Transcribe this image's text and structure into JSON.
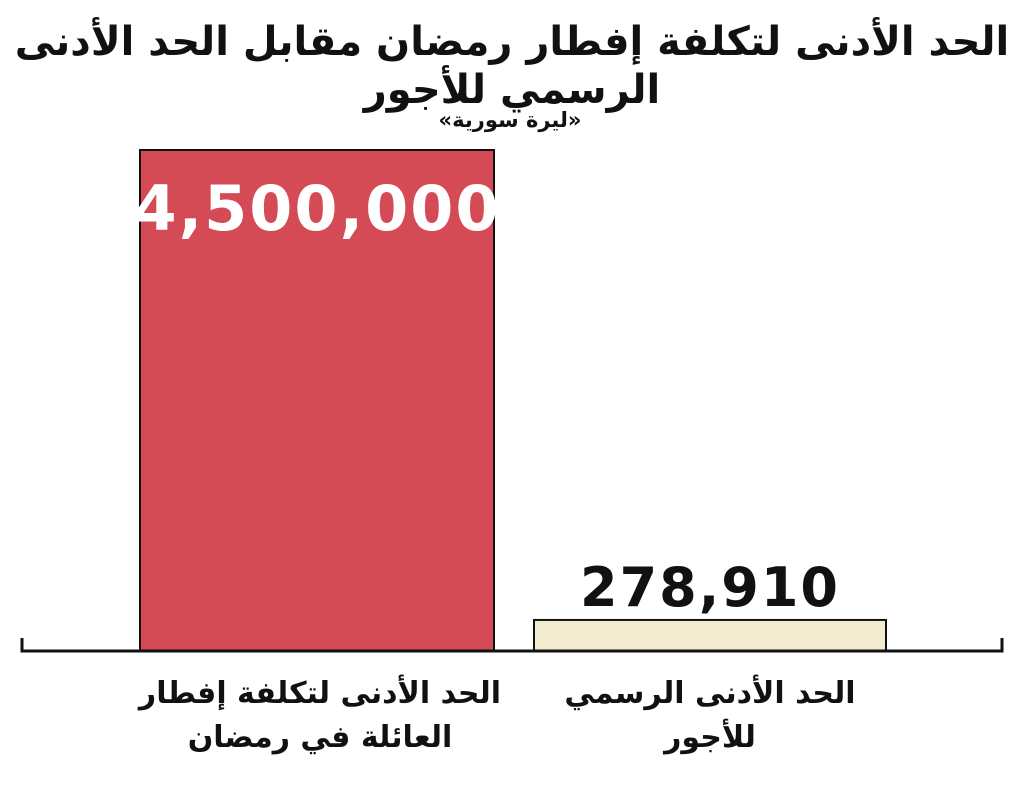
{
  "title": "الحد الأدنى لتكلفة إفطار رمضان مقابل الحد الأدنى الرسمي للأجور",
  "subtitle": "«ليرة سورية»",
  "colors": {
    "bar1": "#D44A55",
    "bar2": "#F1EBCF",
    "axis": "#111111"
  },
  "chart_data": {
    "type": "bar",
    "title": "الحد الأدنى لتكلفة إفطار رمضان مقابل الحد الأدنى الرسمي للأجور",
    "subtitle": "«ليرة سورية»",
    "categories": [
      "الحد الأدنى لتكلفة إفطار العائلة في رمضان",
      "الحد الأدنى الرسمي للأجور"
    ],
    "category_lines": [
      [
        "الحد الأدنى لتكلفة إفطار",
        "العائلة في رمضان"
      ],
      [
        "الحد الأدنى الرسمي",
        "للأجور"
      ]
    ],
    "values": [
      4500000,
      278910
    ],
    "value_labels": [
      "4,500,000",
      "278,910"
    ],
    "ylim": [
      0,
      4500000
    ],
    "grid": false,
    "legend": "none"
  }
}
